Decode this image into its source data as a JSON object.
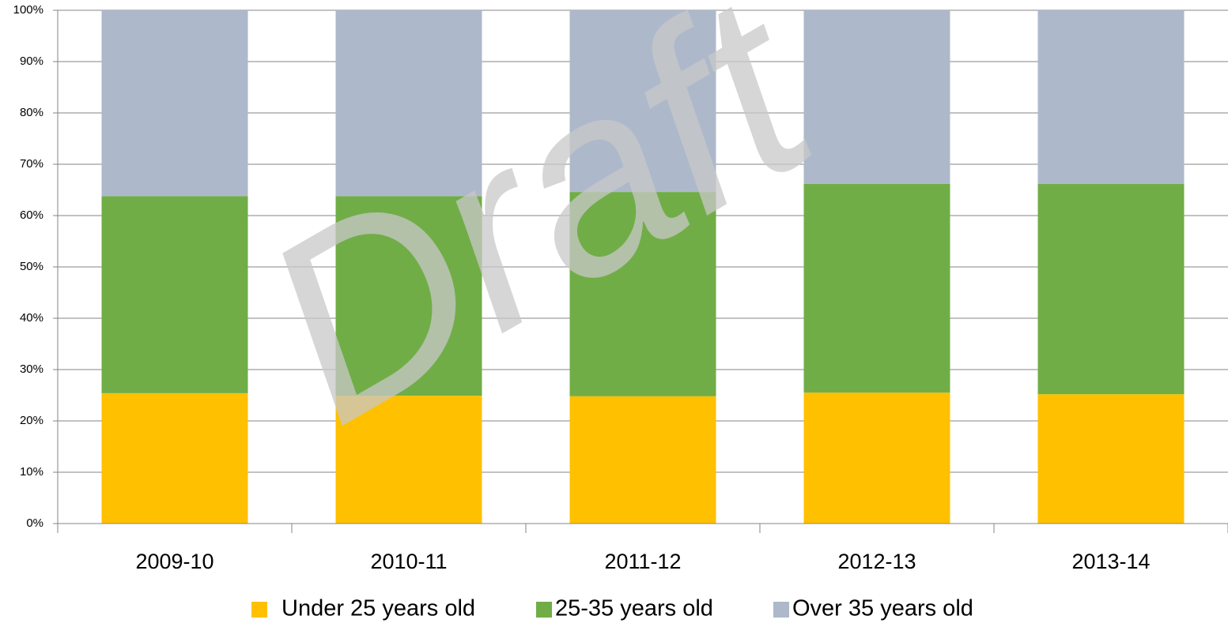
{
  "chart_data": {
    "type": "stacked_bar",
    "watermark": "Draft",
    "categories": [
      "2009-10",
      "2010-11",
      "2011-12",
      "2012-13",
      "2013-14"
    ],
    "series": [
      {
        "name": "Under 25 years old",
        "color": "#ffc000",
        "values": [
          25.4,
          24.9,
          24.8,
          25.5,
          25.2
        ]
      },
      {
        "name": "25-35 years old",
        "color": "#70ad47",
        "values": [
          38.4,
          38.9,
          39.8,
          40.7,
          41.0
        ]
      },
      {
        "name": "Over 35 years old",
        "color": "#adb9ca",
        "values": [
          36.2,
          36.2,
          35.4,
          33.8,
          33.8
        ]
      }
    ],
    "ylim": [
      0,
      100
    ],
    "yticks": [
      {
        "value": 0,
        "label": "0%"
      },
      {
        "value": 10,
        "label": "10%"
      },
      {
        "value": 20,
        "label": "20%"
      },
      {
        "value": 30,
        "label": "30%"
      },
      {
        "value": 40,
        "label": "40%"
      },
      {
        "value": 50,
        "label": "50%"
      },
      {
        "value": 60,
        "label": "60%"
      },
      {
        "value": 70,
        "label": "70%"
      },
      {
        "value": 80,
        "label": "80%"
      },
      {
        "value": 90,
        "label": "90%"
      },
      {
        "value": 100,
        "label": "100%"
      }
    ],
    "grid": true,
    "legend": "bottom"
  }
}
